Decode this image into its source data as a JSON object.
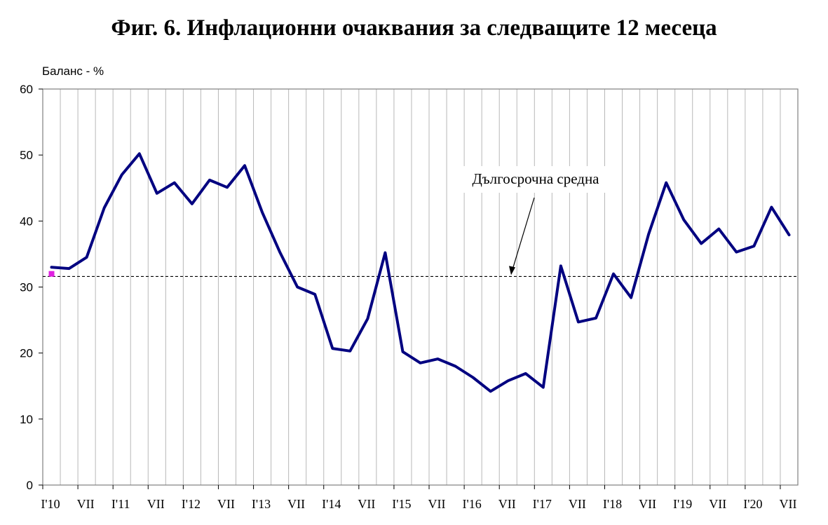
{
  "chart_data": {
    "type": "line",
    "title": "Фиг. 6. Инфлационни очаквания за следващите 12 месеца",
    "ylabel": "Баланс - %",
    "ylim": [
      0,
      60
    ],
    "yticks": [
      0,
      10,
      20,
      30,
      40,
      50,
      60
    ],
    "xtick_labels": [
      "I'10",
      "VII",
      "I'11",
      "VII",
      "I'12",
      "VII",
      "I'13",
      "VII",
      "I'14",
      "VII",
      "I'15",
      "VII",
      "I'16",
      "VII",
      "I'17",
      "VII",
      "I'18",
      "VII",
      "I'19",
      "VII",
      "I'20",
      "VII"
    ],
    "x": [
      "2010-01",
      "2010-04",
      "2010-07",
      "2010-10",
      "2011-01",
      "2011-04",
      "2011-07",
      "2011-10",
      "2012-01",
      "2012-04",
      "2012-07",
      "2012-10",
      "2013-01",
      "2013-04",
      "2013-07",
      "2013-10",
      "2014-01",
      "2014-04",
      "2014-07",
      "2014-10",
      "2015-01",
      "2015-04",
      "2015-07",
      "2015-10",
      "2016-01",
      "2016-04",
      "2016-07",
      "2016-10",
      "2017-01",
      "2017-04",
      "2017-07",
      "2017-10",
      "2018-01",
      "2018-04",
      "2018-07",
      "2018-10",
      "2019-01",
      "2019-04",
      "2019-07",
      "2019-10",
      "2020-01",
      "2020-04",
      "2020-07"
    ],
    "series": [
      {
        "name": "",
        "color": "#000080",
        "values": [
          33.0,
          32.8,
          34.5,
          42.0,
          47.0,
          50.2,
          44.2,
          45.8,
          42.6,
          46.2,
          45.1,
          48.4,
          41.3,
          35.3,
          30.0,
          28.9,
          20.7,
          20.3,
          25.2,
          35.2,
          20.2,
          18.5,
          19.1,
          18.0,
          16.3,
          14.2,
          15.8,
          16.9,
          14.8,
          33.2,
          24.7,
          25.3,
          32.0,
          28.4,
          38.0,
          45.8,
          40.2,
          36.6,
          38.8,
          35.3,
          36.2,
          42.1,
          37.9
        ]
      }
    ],
    "reference_line": {
      "label": "Дългосрочна средна",
      "value": 31.6,
      "color": "#000000"
    },
    "marker": {
      "x": "2010-01",
      "value": 32.0,
      "color": "#e020e0"
    },
    "grid": "vertical"
  }
}
